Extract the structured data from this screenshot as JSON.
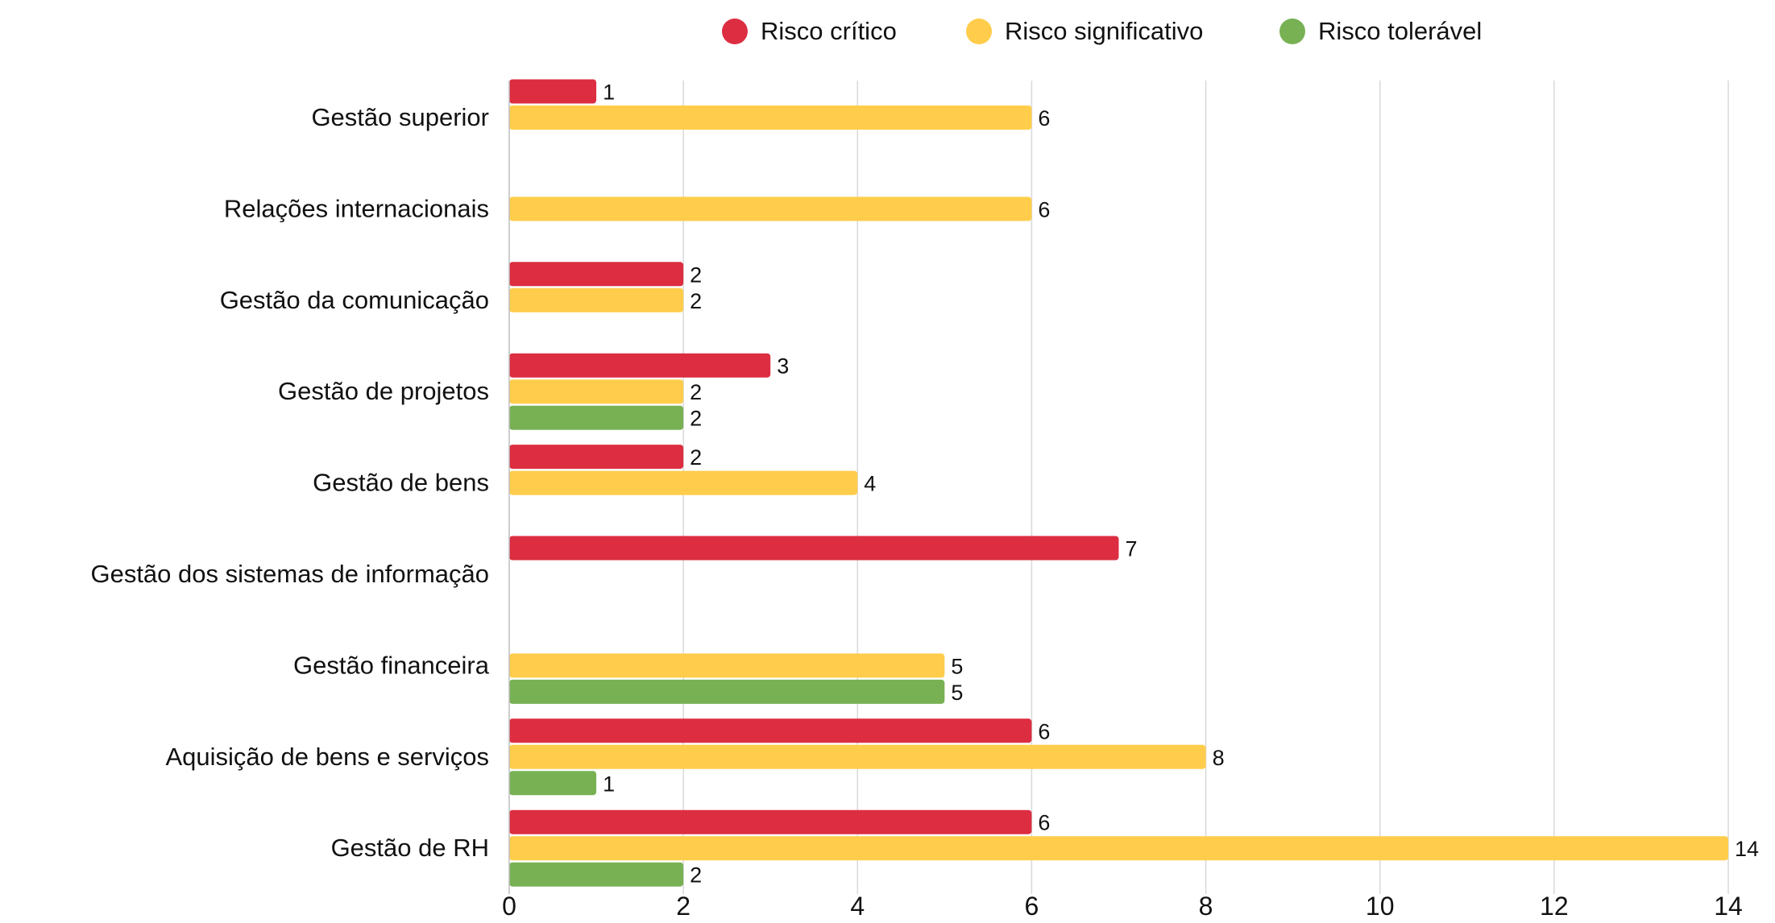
{
  "chart_data": {
    "type": "bar",
    "orientation": "horizontal",
    "categories": [
      "Gestão superior",
      "Relações internacionais",
      "Gestão da comunicação",
      "Gestão de projetos",
      "Gestão de bens",
      "Gestão dos sistemas de informação",
      "Gestão financeira",
      "Aquisição de bens e serviços",
      "Gestão de RH"
    ],
    "series": [
      {
        "name": "Risco crítico",
        "color": "#dc2d41",
        "values": [
          1,
          null,
          2,
          3,
          2,
          7,
          null,
          6,
          6
        ]
      },
      {
        "name": "Risco significativo",
        "color": "#ffcd4b",
        "values": [
          6,
          6,
          2,
          2,
          4,
          null,
          5,
          8,
          14
        ]
      },
      {
        "name": "Risco tolerável",
        "color": "#78b154",
        "values": [
          null,
          null,
          null,
          2,
          null,
          null,
          5,
          1,
          2
        ]
      }
    ],
    "xlim": [
      0,
      14
    ],
    "xticks": [
      0,
      2,
      4,
      6,
      8,
      10,
      12,
      14
    ],
    "legend_position": "top-center",
    "grid": "vertical",
    "data_labels": true,
    "title": "",
    "xlabel": "",
    "ylabel": ""
  }
}
